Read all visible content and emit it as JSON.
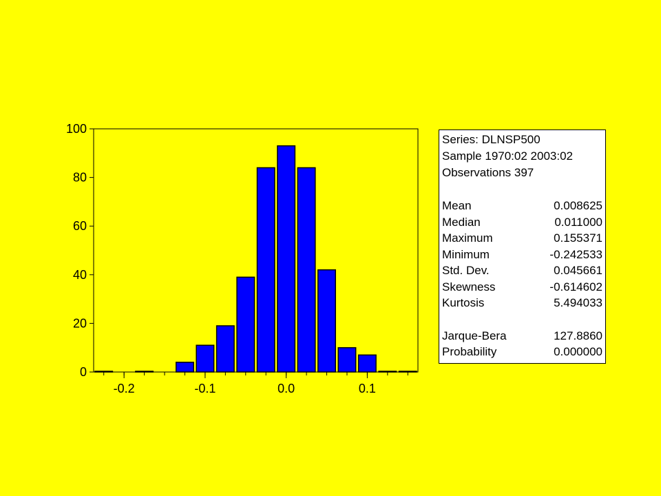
{
  "chart_data": {
    "type": "bar",
    "bin_width": 0.025,
    "bin_centers": [
      -0.225,
      -0.2,
      -0.175,
      -0.15,
      -0.125,
      -0.1,
      -0.075,
      -0.05,
      -0.025,
      0.0,
      0.025,
      0.05,
      0.075,
      0.1,
      0.125,
      0.15
    ],
    "values": [
      0.3,
      0,
      0.3,
      0,
      4,
      11,
      19,
      39,
      84,
      93,
      84,
      42,
      10,
      7,
      0.3,
      0.3
    ],
    "x_ticks": [
      -0.2,
      -0.1,
      0.0,
      0.1
    ],
    "x_tick_labels": [
      "-0.2",
      "-0.1",
      "0.0",
      "0.1"
    ],
    "y_ticks": [
      0,
      20,
      40,
      60,
      80,
      100
    ],
    "y_tick_labels": [
      "0",
      "20",
      "40",
      "60",
      "80",
      "100"
    ],
    "xlim": [
      -0.2375,
      0.1625
    ],
    "ylim": [
      0,
      100
    ],
    "bar_color": "#0000ff",
    "background_color": "#ffff00",
    "title": "",
    "xlabel": "",
    "ylabel": ""
  },
  "stats": {
    "series_line": "Series: DLNSP500",
    "sample_line": "Sample 1970:02 2003:02",
    "observations_line": "Observations 397",
    "rows": [
      {
        "label": "Mean",
        "value": "0.008625"
      },
      {
        "label": "Median",
        "value": "0.011000"
      },
      {
        "label": "Maximum",
        "value": "0.155371"
      },
      {
        "label": "Minimum",
        "value": "-0.242533"
      },
      {
        "label": "Std. Dev.",
        "value": "0.045661"
      },
      {
        "label": "Skewness",
        "value": "-0.614602"
      },
      {
        "label": "Kurtosis",
        "value": "5.494033"
      }
    ],
    "test_rows": [
      {
        "label": "Jarque-Bera",
        "value": "127.8860"
      },
      {
        "label": "Probability",
        "value": "0.000000"
      }
    ]
  }
}
